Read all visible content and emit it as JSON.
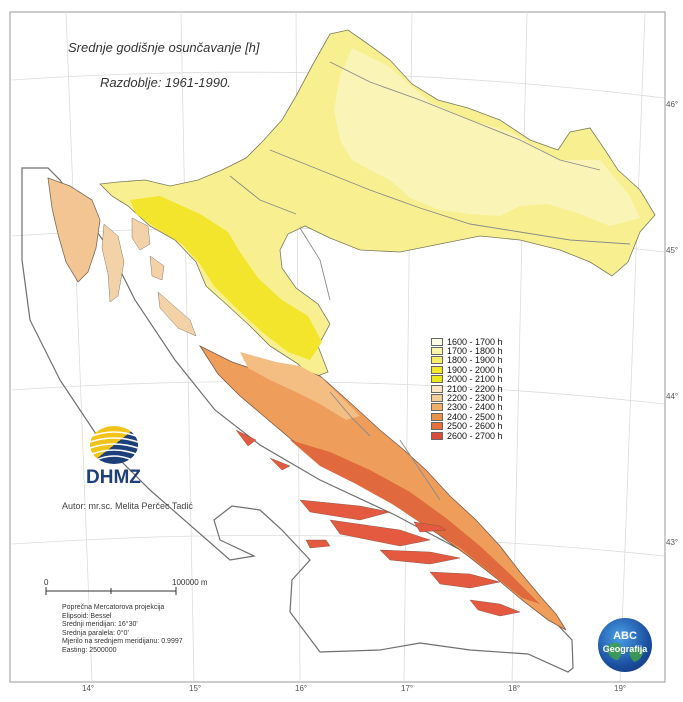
{
  "title": "Srednje godišnje osunčavanje [h]",
  "subtitle": "Razdoblje: 1961-1990.",
  "legend": [
    {
      "label": "1600 - 1700 h",
      "color": "#fdfbe0"
    },
    {
      "label": "1700 - 1800 h",
      "color": "#faf5a8"
    },
    {
      "label": "1800 - 1900 h",
      "color": "#f7ee6e"
    },
    {
      "label": "1900 - 2000 h",
      "color": "#f3e82e"
    },
    {
      "label": "2000 - 2100 h",
      "color": "#ece81c"
    },
    {
      "label": "2100 - 2200 h",
      "color": "#fbe5c4"
    },
    {
      "label": "2200 - 2300 h",
      "color": "#f6cc98"
    },
    {
      "label": "2300 - 2400 h",
      "color": "#f0b068"
    },
    {
      "label": "2400 - 2500 h",
      "color": "#e9934a"
    },
    {
      "label": "2500 - 2600 h",
      "color": "#e27038"
    },
    {
      "label": "2600 - 2700 h",
      "color": "#db4c3c"
    }
  ],
  "latitudes": [
    "46°",
    "45°",
    "44°",
    "43°"
  ],
  "longitudes": [
    "14°",
    "15°",
    "16°",
    "17°",
    "18°",
    "19°"
  ],
  "scale": {
    "zero": "0",
    "end": "100000 m"
  },
  "author": "Autor: mr.sc. Melita Perčec Tadić",
  "logo_text": "DHMZ",
  "projection_lines": [
    "Poprečna Mercatorova projekcija",
    "Elipsoid: Bessel",
    "Srednji meridijan: 16°30'",
    "Srednja paralela: 0°0'",
    "Mjerilo na srednjem meridijanu: 0.9997",
    "Easting: 2500000"
  ],
  "badge": {
    "line1": "ABC",
    "line2": "Geografija"
  },
  "colors": {
    "border": "#6f6f6f",
    "graticule": "#d7d7d7",
    "river": "#8a8a8a"
  }
}
